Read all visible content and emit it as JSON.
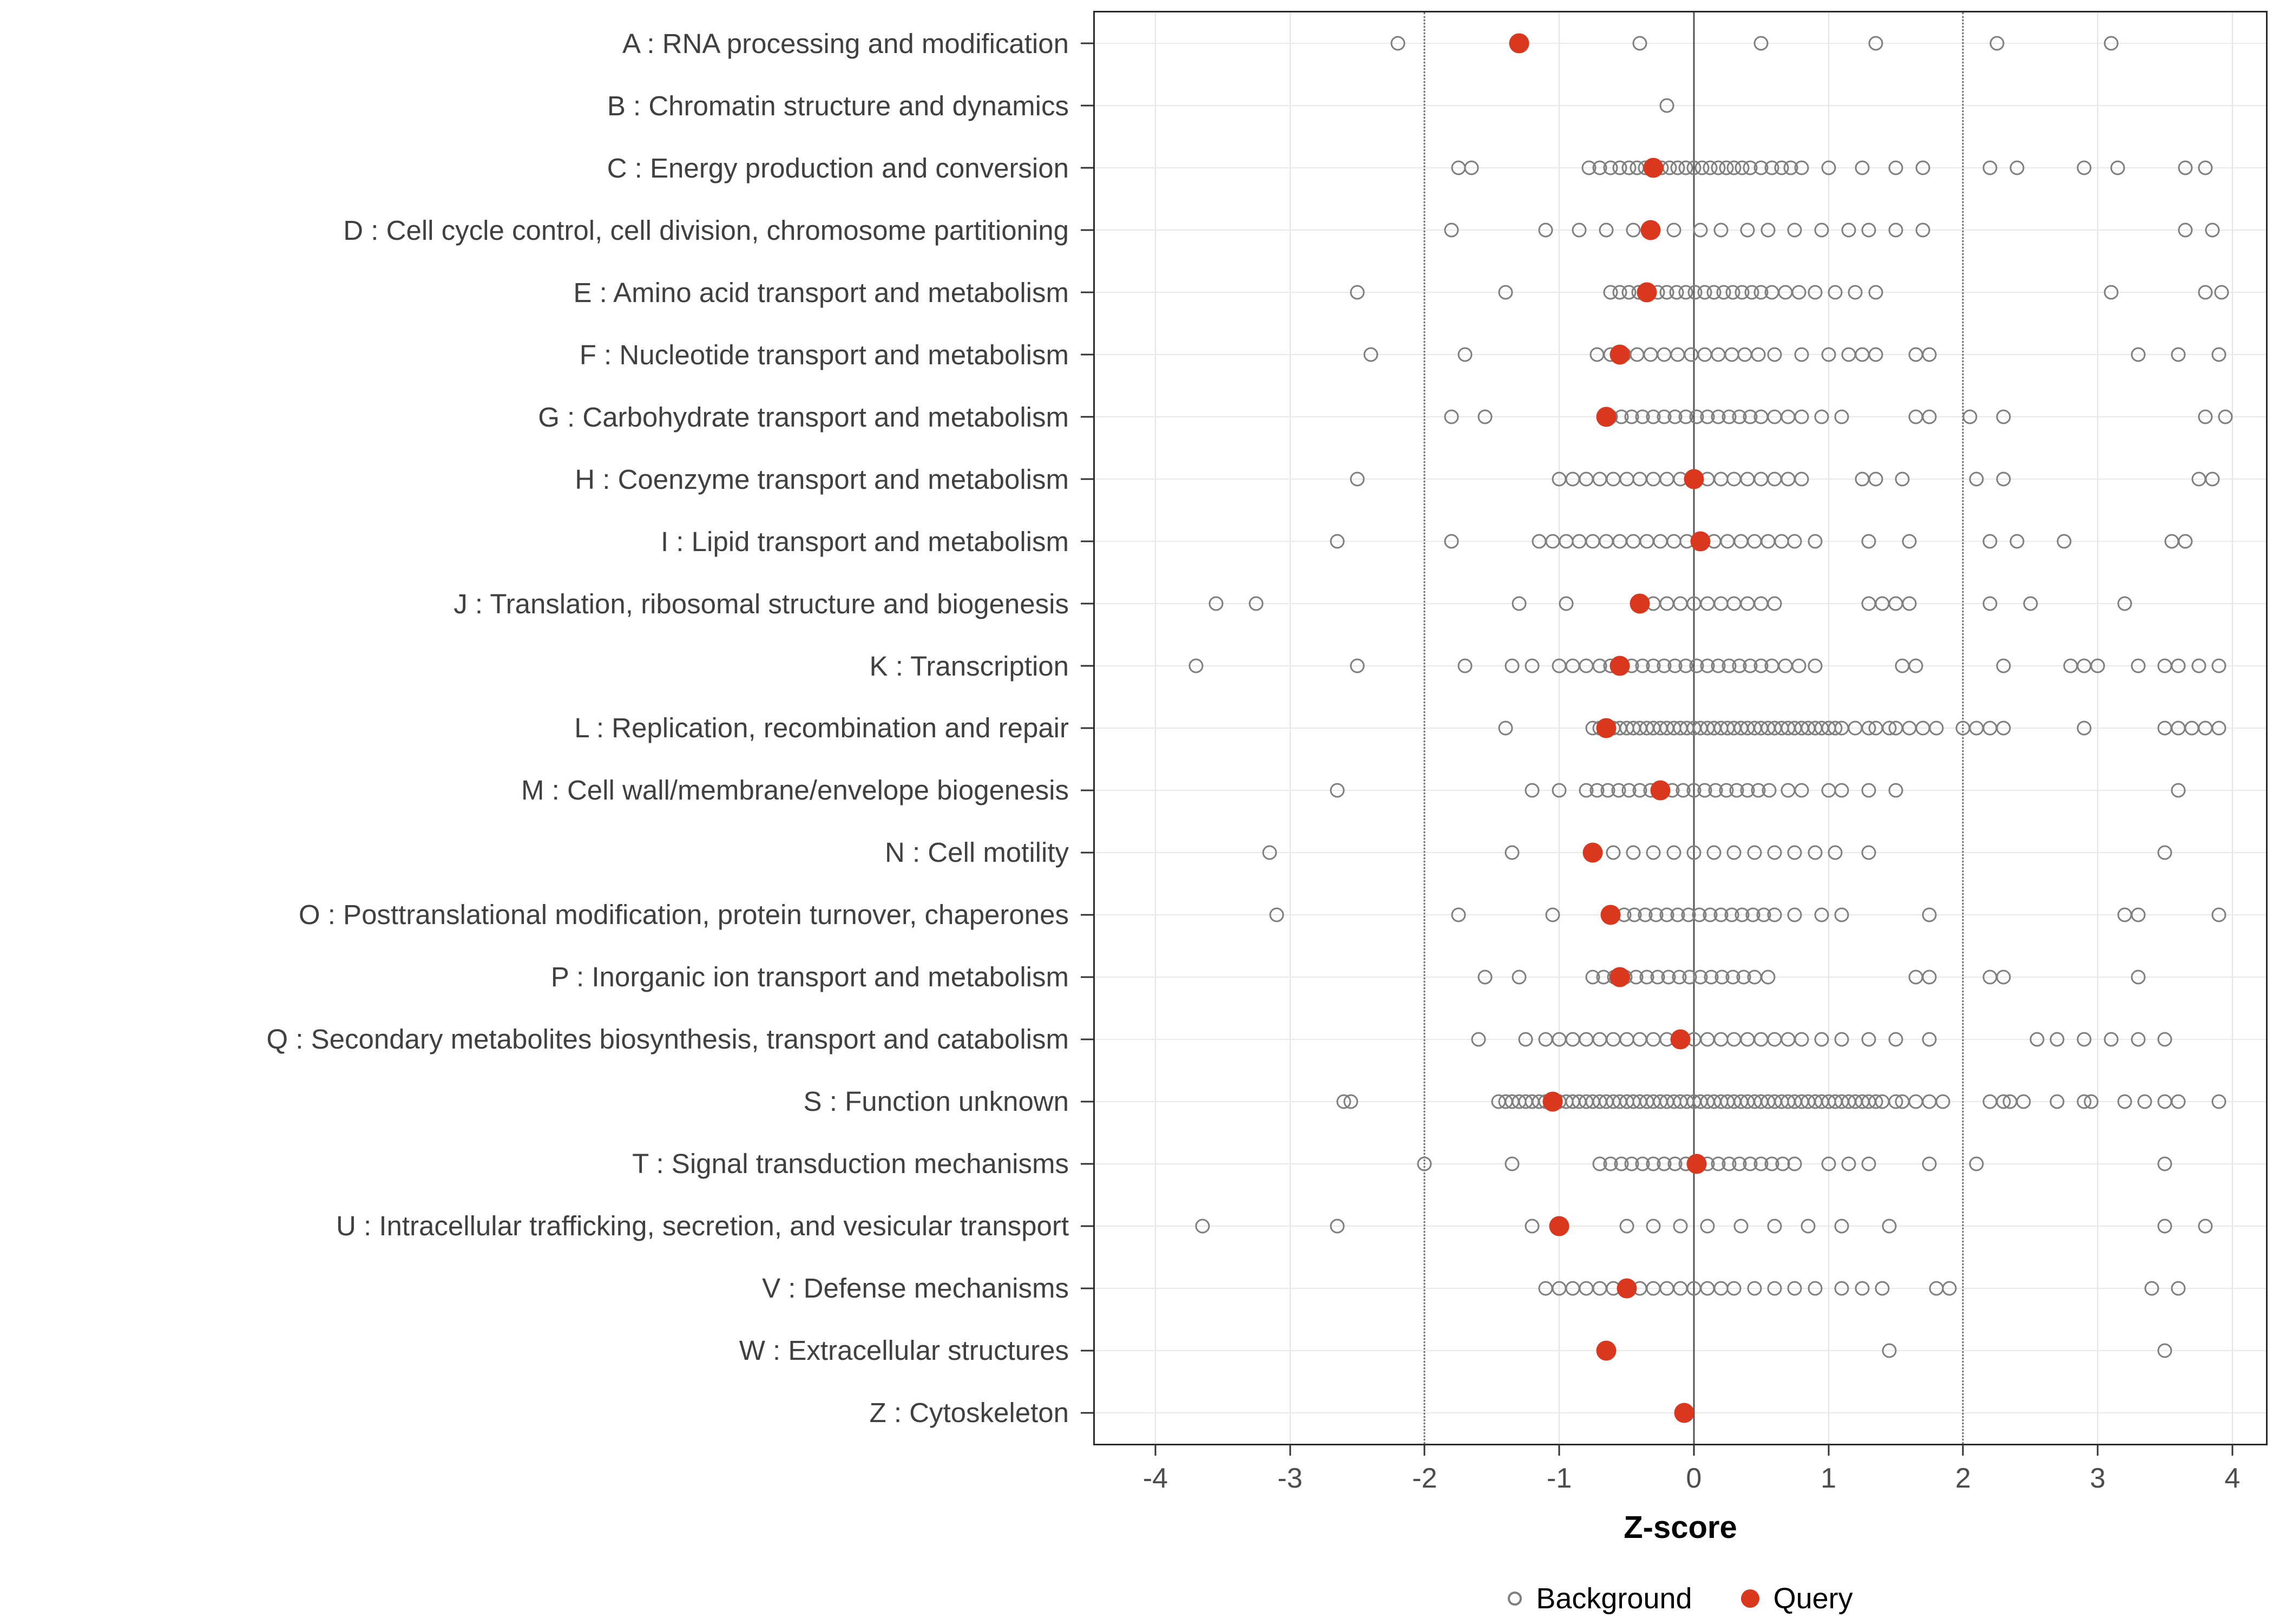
{
  "chart_data": {
    "type": "scatter",
    "title": "",
    "xlabel": "Z-score",
    "x_ticks": [
      -4,
      -3,
      -2,
      -1,
      0,
      1,
      2,
      3,
      4
    ],
    "xlim": [
      -4.45,
      4.25
    ],
    "grid": true,
    "reference_lines": {
      "solid": [
        0
      ],
      "dotted": [
        -2,
        2
      ]
    },
    "legend_position": "bottom",
    "legend": [
      {
        "label": "Background",
        "marker": "open-circle",
        "color": "#7F7F7F"
      },
      {
        "label": "Query",
        "marker": "filled-circle",
        "color": "#D9381E"
      }
    ],
    "categories": [
      {
        "label": "A : RNA processing and modification",
        "background": [
          -2.2,
          -0.4,
          0.5,
          1.35,
          2.25,
          3.1
        ],
        "query": -1.3
      },
      {
        "label": "B : Chromatin structure and dynamics",
        "background": [
          -0.2
        ],
        "query": null
      },
      {
        "label": "C : Energy production and conversion",
        "background": [
          -1.75,
          -1.65,
          -0.78,
          -0.7,
          -0.62,
          -0.55,
          -0.48,
          -0.42,
          -0.36,
          -0.3,
          -0.24,
          -0.18,
          -0.12,
          -0.06,
          0.0,
          0.06,
          0.12,
          0.18,
          0.24,
          0.3,
          0.36,
          0.42,
          0.5,
          0.58,
          0.65,
          0.72,
          0.8,
          1.0,
          1.25,
          1.5,
          1.7,
          2.2,
          2.4,
          2.9,
          3.15,
          3.65,
          3.8
        ],
        "query": -0.3
      },
      {
        "label": "D : Cell cycle control, cell division, chromosome partitioning",
        "background": [
          -1.8,
          -1.1,
          -0.85,
          -0.65,
          -0.45,
          -0.15,
          0.05,
          0.2,
          0.4,
          0.55,
          0.75,
          0.95,
          1.15,
          1.3,
          1.5,
          1.7,
          3.65,
          3.85
        ],
        "query": -0.32
      },
      {
        "label": "E : Amino acid transport and metabolism",
        "background": [
          -2.5,
          -1.4,
          -0.62,
          -0.55,
          -0.48,
          -0.41,
          -0.34,
          -0.27,
          -0.2,
          -0.13,
          -0.06,
          0.01,
          0.08,
          0.15,
          0.22,
          0.29,
          0.36,
          0.43,
          0.5,
          0.58,
          0.68,
          0.78,
          0.9,
          1.05,
          1.2,
          1.35,
          3.1,
          3.8,
          3.92
        ],
        "query": -0.35
      },
      {
        "label": "F : Nucleotide transport and metabolism",
        "background": [
          -2.4,
          -1.7,
          -0.72,
          -0.62,
          -0.52,
          -0.42,
          -0.32,
          -0.22,
          -0.12,
          -0.02,
          0.08,
          0.18,
          0.28,
          0.38,
          0.48,
          0.6,
          0.8,
          1.0,
          1.15,
          1.25,
          1.35,
          1.65,
          1.75,
          3.3,
          3.6,
          3.9
        ],
        "query": -0.55
      },
      {
        "label": "G : Carbohydrate transport and metabolism",
        "background": [
          -1.8,
          -1.55,
          -0.62,
          -0.54,
          -0.46,
          -0.38,
          -0.3,
          -0.22,
          -0.14,
          -0.06,
          0.02,
          0.1,
          0.18,
          0.26,
          0.34,
          0.42,
          0.5,
          0.6,
          0.7,
          0.8,
          0.95,
          1.1,
          1.65,
          1.75,
          2.05,
          2.3,
          3.8,
          3.95
        ],
        "query": -0.65
      },
      {
        "label": "H : Coenzyme transport and metabolism",
        "background": [
          -2.5,
          -1.0,
          -0.9,
          -0.8,
          -0.7,
          -0.6,
          -0.5,
          -0.4,
          -0.3,
          -0.2,
          -0.1,
          0.0,
          0.1,
          0.2,
          0.3,
          0.4,
          0.5,
          0.6,
          0.7,
          0.8,
          1.25,
          1.35,
          1.55,
          2.1,
          2.3,
          3.75,
          3.85
        ],
        "query": 0.0
      },
      {
        "label": "I : Lipid transport and metabolism",
        "background": [
          -2.65,
          -1.8,
          -1.15,
          -1.05,
          -0.95,
          -0.85,
          -0.75,
          -0.65,
          -0.55,
          -0.45,
          -0.35,
          -0.25,
          -0.15,
          -0.05,
          0.05,
          0.15,
          0.25,
          0.35,
          0.45,
          0.55,
          0.65,
          0.75,
          0.9,
          1.3,
          1.6,
          2.2,
          2.4,
          2.75,
          3.55,
          3.65
        ],
        "query": 0.05
      },
      {
        "label": "J : Translation, ribosomal structure and biogenesis",
        "background": [
          -3.55,
          -3.25,
          -1.3,
          -0.95,
          -0.3,
          -0.2,
          -0.1,
          0.0,
          0.1,
          0.2,
          0.3,
          0.4,
          0.5,
          0.6,
          1.3,
          1.4,
          1.5,
          1.6,
          2.2,
          2.5,
          3.2
        ],
        "query": -0.4
      },
      {
        "label": "K : Transcription",
        "background": [
          -3.7,
          -2.5,
          -1.7,
          -1.35,
          -1.2,
          -1.0,
          -0.9,
          -0.8,
          -0.7,
          -0.62,
          -0.54,
          -0.46,
          -0.38,
          -0.3,
          -0.22,
          -0.14,
          -0.06,
          0.02,
          0.1,
          0.18,
          0.26,
          0.34,
          0.42,
          0.5,
          0.58,
          0.68,
          0.78,
          0.9,
          1.55,
          1.65,
          2.3,
          2.8,
          2.9,
          3.0,
          3.3,
          3.5,
          3.6,
          3.75,
          3.9
        ],
        "query": -0.55
      },
      {
        "label": "L : Replication, recombination and repair",
        "background": [
          -1.4,
          -0.75,
          -0.7,
          -0.65,
          -0.6,
          -0.55,
          -0.5,
          -0.45,
          -0.4,
          -0.35,
          -0.3,
          -0.25,
          -0.2,
          -0.15,
          -0.1,
          -0.05,
          0.0,
          0.05,
          0.1,
          0.15,
          0.2,
          0.25,
          0.3,
          0.35,
          0.4,
          0.45,
          0.5,
          0.55,
          0.6,
          0.65,
          0.7,
          0.75,
          0.8,
          0.85,
          0.9,
          0.95,
          1.0,
          1.05,
          1.1,
          1.2,
          1.3,
          1.35,
          1.45,
          1.5,
          1.6,
          1.7,
          1.8,
          2.0,
          2.1,
          2.2,
          2.3,
          2.9,
          3.5,
          3.6,
          3.7,
          3.8,
          3.9
        ],
        "query": -0.65
      },
      {
        "label": "M : Cell wall/membrane/envelope biogenesis",
        "background": [
          -2.65,
          -1.2,
          -1.0,
          -0.8,
          -0.72,
          -0.64,
          -0.56,
          -0.48,
          -0.4,
          -0.32,
          -0.24,
          -0.16,
          -0.08,
          0.0,
          0.08,
          0.16,
          0.24,
          0.32,
          0.4,
          0.48,
          0.56,
          0.7,
          0.8,
          1.0,
          1.1,
          1.3,
          1.5,
          3.6
        ],
        "query": -0.25
      },
      {
        "label": "N : Cell motility",
        "background": [
          -3.15,
          -1.35,
          -0.6,
          -0.45,
          -0.3,
          -0.15,
          0.0,
          0.15,
          0.3,
          0.45,
          0.6,
          0.75,
          0.9,
          1.05,
          1.3,
          3.5
        ],
        "query": -0.75
      },
      {
        "label": "O : Posttranslational modification, protein turnover, chaperones",
        "background": [
          -3.1,
          -1.75,
          -1.05,
          -0.6,
          -0.52,
          -0.44,
          -0.36,
          -0.28,
          -0.2,
          -0.12,
          -0.04,
          0.04,
          0.12,
          0.2,
          0.28,
          0.36,
          0.44,
          0.52,
          0.6,
          0.75,
          0.95,
          1.1,
          1.75,
          3.2,
          3.3,
          3.9
        ],
        "query": -0.62
      },
      {
        "label": "P : Inorganic ion transport and metabolism",
        "background": [
          -1.55,
          -1.3,
          -0.75,
          -0.67,
          -0.59,
          -0.51,
          -0.43,
          -0.35,
          -0.27,
          -0.19,
          -0.11,
          -0.03,
          0.05,
          0.13,
          0.21,
          0.29,
          0.37,
          0.45,
          0.55,
          1.65,
          1.75,
          2.2,
          2.3,
          3.3
        ],
        "query": -0.55
      },
      {
        "label": "Q : Secondary metabolites biosynthesis, transport and catabolism",
        "background": [
          -1.6,
          -1.25,
          -1.1,
          -1.0,
          -0.9,
          -0.8,
          -0.7,
          -0.6,
          -0.5,
          -0.4,
          -0.3,
          -0.2,
          -0.1,
          0.0,
          0.1,
          0.2,
          0.3,
          0.4,
          0.5,
          0.6,
          0.7,
          0.8,
          0.95,
          1.1,
          1.3,
          1.5,
          1.75,
          2.55,
          2.7,
          2.9,
          3.1,
          3.3,
          3.5
        ],
        "query": -0.1
      },
      {
        "label": "S : Function unknown",
        "background": [
          -2.6,
          -2.55,
          -1.45,
          -1.4,
          -1.35,
          -1.3,
          -1.25,
          -1.2,
          -1.15,
          -1.1,
          -1.05,
          -1.0,
          -0.95,
          -0.9,
          -0.85,
          -0.8,
          -0.75,
          -0.7,
          -0.65,
          -0.6,
          -0.55,
          -0.5,
          -0.45,
          -0.4,
          -0.35,
          -0.3,
          -0.25,
          -0.2,
          -0.15,
          -0.1,
          -0.05,
          0.0,
          0.05,
          0.1,
          0.15,
          0.2,
          0.25,
          0.3,
          0.35,
          0.4,
          0.45,
          0.5,
          0.55,
          0.6,
          0.65,
          0.7,
          0.75,
          0.8,
          0.85,
          0.9,
          0.95,
          1.0,
          1.05,
          1.1,
          1.15,
          1.2,
          1.25,
          1.3,
          1.35,
          1.4,
          1.5,
          1.55,
          1.65,
          1.75,
          1.85,
          2.2,
          2.3,
          2.35,
          2.45,
          2.7,
          2.9,
          2.95,
          3.2,
          3.35,
          3.5,
          3.6,
          3.9
        ],
        "query": -1.05
      },
      {
        "label": "T : Signal transduction mechanisms",
        "background": [
          -2.0,
          -1.35,
          -0.7,
          -0.62,
          -0.54,
          -0.46,
          -0.38,
          -0.3,
          -0.22,
          -0.14,
          -0.06,
          0.02,
          0.1,
          0.18,
          0.26,
          0.34,
          0.42,
          0.5,
          0.58,
          0.66,
          0.75,
          1.0,
          1.15,
          1.3,
          1.75,
          2.1,
          3.5
        ],
        "query": 0.02
      },
      {
        "label": "U : Intracellular trafficking, secretion, and vesicular transport",
        "background": [
          -3.65,
          -2.65,
          -1.2,
          -0.5,
          -0.3,
          -0.1,
          0.1,
          0.35,
          0.6,
          0.85,
          1.1,
          1.45,
          3.5,
          3.8
        ],
        "query": -1.0
      },
      {
        "label": "V : Defense mechanisms",
        "background": [
          -1.1,
          -1.0,
          -0.9,
          -0.8,
          -0.7,
          -0.6,
          -0.5,
          -0.4,
          -0.3,
          -0.2,
          -0.1,
          0.0,
          0.1,
          0.2,
          0.3,
          0.45,
          0.6,
          0.75,
          0.9,
          1.1,
          1.25,
          1.4,
          1.8,
          1.9,
          3.4,
          3.6
        ],
        "query": -0.5
      },
      {
        "label": "W : Extracellular structures",
        "background": [
          1.45,
          3.5
        ],
        "query": -0.65
      },
      {
        "label": "Z : Cytoskeleton",
        "background": [],
        "query": -0.07
      }
    ]
  }
}
